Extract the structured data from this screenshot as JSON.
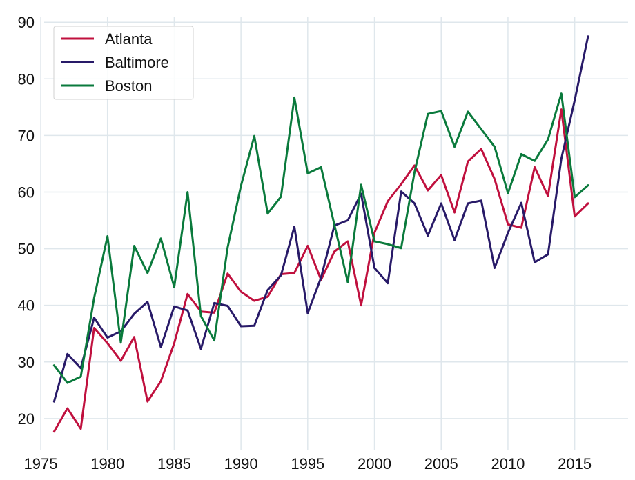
{
  "chart_data": {
    "type": "line",
    "title": "",
    "xlabel": "",
    "ylabel": "",
    "xlim": [
      1973.5,
      2019
    ],
    "ylim": [
      14.5,
      91
    ],
    "xticks": [
      1975,
      1980,
      1985,
      1990,
      1995,
      2000,
      2005,
      2010,
      2015
    ],
    "yticks": [
      20,
      30,
      40,
      50,
      60,
      70,
      80,
      90
    ],
    "grid": true,
    "legend_position": "top-left",
    "x": [
      1976,
      1977,
      1978,
      1979,
      1980,
      1981,
      1982,
      1983,
      1984,
      1985,
      1986,
      1987,
      1988,
      1989,
      1990,
      1991,
      1992,
      1993,
      1994,
      1995,
      1996,
      1997,
      1998,
      1999,
      2000,
      2001,
      2002,
      2003,
      2004,
      2005,
      2006,
      2007,
      2008,
      2009,
      2010,
      2011,
      2012,
      2013,
      2014,
      2015,
      2016
    ],
    "series": [
      {
        "name": "Atlanta",
        "color": "#c0103e",
        "values": [
          17.7,
          21.8,
          18.2,
          36.0,
          33.3,
          30.2,
          34.4,
          23.0,
          26.6,
          33.3,
          42.0,
          38.9,
          38.7,
          45.6,
          42.4,
          40.8,
          41.5,
          45.5,
          45.7,
          50.5,
          44.5,
          49.5,
          51.3,
          40.0,
          52.8,
          58.4,
          61.4,
          64.7,
          60.3,
          63.0,
          56.4,
          65.4,
          67.6,
          62.3,
          54.3,
          53.7,
          64.4,
          59.3,
          74.6,
          55.7,
          58.0
        ]
      },
      {
        "name": "Baltimore",
        "color": "#281a68",
        "values": [
          23.0,
          31.4,
          28.9,
          37.8,
          34.3,
          35.4,
          38.5,
          40.6,
          32.6,
          39.8,
          39.1,
          32.3,
          40.4,
          39.9,
          36.3,
          36.4,
          42.7,
          45.3,
          53.9,
          38.6,
          44.9,
          54.1,
          55.0,
          59.7,
          46.6,
          43.9,
          60.1,
          58.0,
          52.3,
          58.0,
          51.5,
          58.0,
          58.5,
          46.6,
          52.8,
          58.1,
          47.6,
          49.0,
          65.9,
          76.2,
          87.5
        ]
      },
      {
        "name": "Boston",
        "color": "#0a7a3c",
        "values": [
          29.4,
          26.3,
          27.4,
          41.3,
          52.2,
          33.4,
          50.5,
          45.7,
          51.8,
          43.2,
          60.0,
          38.1,
          33.8,
          50.2,
          61.1,
          69.9,
          56.2,
          59.2,
          76.7,
          63.3,
          64.4,
          54.2,
          44.1,
          61.3,
          51.3,
          50.8,
          50.1,
          63.5,
          73.8,
          74.3,
          68.0,
          74.2,
          71.1,
          68.0,
          59.8,
          66.7,
          65.5,
          69.3,
          77.4,
          59.1,
          61.2
        ]
      }
    ]
  }
}
